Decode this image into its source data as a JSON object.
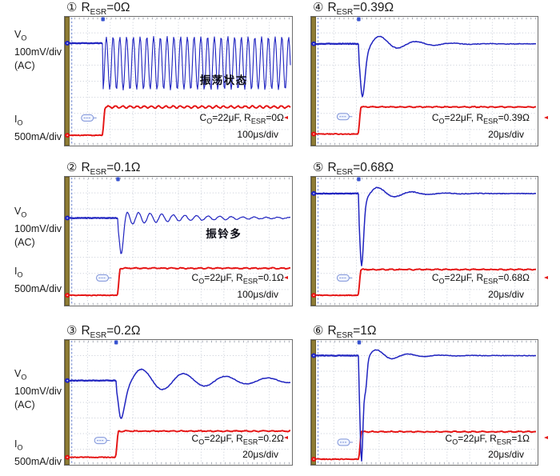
{
  "figure": {
    "axis_labels": {
      "vo": {
        "letter": "V",
        "sub": "O",
        "scale": "100mV/div",
        "coupling": "(AC)"
      },
      "io": {
        "letter": "I",
        "sub": "O",
        "scale": "500mA/div"
      }
    },
    "colors": {
      "vo_trace": "#2024c0",
      "io_trace": "#e51212",
      "grid_dot": "#c6cbd6",
      "frame": "#6e6e6e",
      "left_bar": "#8e7c35",
      "axis_dash": "#96a8e2",
      "tag": "#7e93d9",
      "text": "#111111"
    }
  },
  "chart_data": [
    {
      "type": "line",
      "id": "panel-1",
      "index_glyph": "①",
      "title": {
        "prefix": "R",
        "sub": "ESR",
        "value": "=0Ω"
      },
      "caption": {
        "c": "C",
        "c_sub": "O",
        "mid": "=22μF, R",
        "r_sub": "ESR",
        "value": "=0Ω"
      },
      "timebase": "100μs/div",
      "annotation": "振荡状态",
      "vo_scale": "100mV/div (AC)",
      "io_scale": "500mA/div",
      "grid_divs": {
        "x": 10,
        "y": 8
      },
      "behavior": "sustained output oscillation after load step",
      "wave": {
        "trig": 0.168,
        "vo": {
          "mode": "sustained",
          "base": 0.205,
          "center": 0.36,
          "amp": 0.205,
          "cycles": 28
        },
        "io": {
          "base": 0.92,
          "high": 0.7,
          "ripple": 1.3
        }
      }
    },
    {
      "type": "line",
      "id": "panel-4",
      "index_glyph": "④",
      "title": {
        "prefix": "R",
        "sub": "ESR",
        "value": "=0.39Ω"
      },
      "caption": {
        "c": "C",
        "c_sub": "O",
        "mid": "=22μF, R",
        "r_sub": "ESR",
        "value": "=0.39Ω"
      },
      "timebase": "20μs/div",
      "behavior": "undershoot spike with damped ringing, settles",
      "vo_scale": "100mV/div (AC)",
      "io_scale": "500mA/div",
      "grid_divs": {
        "x": 10,
        "y": 8
      },
      "wave": {
        "trig": 0.21,
        "vo": {
          "mode": "damped",
          "base": 0.21,
          "dip": 0.62,
          "spike_w": 4.5,
          "ring_amp": 0.1,
          "period": 0.16,
          "tau": 0.14
        },
        "io": {
          "base": 0.91,
          "high": 0.7,
          "ripple": 0.45
        }
      }
    },
    {
      "type": "line",
      "id": "panel-2",
      "index_glyph": "②",
      "title": {
        "prefix": "R",
        "sub": "ESR",
        "value": "=0.1Ω"
      },
      "caption": {
        "c": "C",
        "c_sub": "O",
        "mid": "=22μF, R",
        "r_sub": "ESR",
        "value": "=0.1Ω"
      },
      "timebase": "100μs/div",
      "annotation": "振铃多",
      "behavior": "deep dip followed by long decaying ringing",
      "vo_scale": "100mV/div (AC)",
      "io_scale": "500mA/div",
      "grid_divs": {
        "x": 10,
        "y": 8
      },
      "wave": {
        "trig": 0.234,
        "vo": {
          "mode": "damped",
          "base": 0.32,
          "dip": 0.6,
          "spike_w": 4,
          "ring_amp": 0.055,
          "period": 0.051,
          "tau": 0.3
        },
        "io": {
          "base": 0.92,
          "high": 0.71,
          "ripple": 0.45
        }
      }
    },
    {
      "type": "line",
      "id": "panel-5",
      "index_glyph": "⑤",
      "title": {
        "prefix": "R",
        "sub": "ESR",
        "value": "=0.68Ω"
      },
      "caption": {
        "c": "C",
        "c_sub": "O",
        "mid": "=22μF, R",
        "r_sub": "ESR",
        "value": "=0.68Ω"
      },
      "timebase": "20μs/div",
      "behavior": "narrow deep undershoot, small ring, fast settle",
      "vo_scale": "100mV/div (AC)",
      "io_scale": "500mA/div",
      "grid_divs": {
        "x": 10,
        "y": 8
      },
      "wave": {
        "trig": 0.21,
        "vo": {
          "mode": "damped",
          "base": 0.13,
          "dip": 0.69,
          "spike_w": 3.5,
          "ring_amp": 0.085,
          "period": 0.15,
          "tau": 0.12
        },
        "io": {
          "base": 0.92,
          "high": 0.72,
          "ripple": 0.45
        }
      }
    },
    {
      "type": "line",
      "id": "panel-3",
      "index_glyph": "③",
      "title": {
        "prefix": "R",
        "sub": "ESR",
        "value": "=0.2Ω"
      },
      "caption": {
        "c": "C",
        "c_sub": "O",
        "mid": "=22μF, R",
        "r_sub": "ESR",
        "value": "=0.2Ω"
      },
      "timebase": "20μs/div",
      "behavior": "dip with slow decaying ringing over several cycles",
      "vo_scale": "100mV/div (AC)",
      "io_scale": "500mA/div",
      "grid_divs": {
        "x": 10,
        "y": 8
      },
      "wave": {
        "trig": 0.226,
        "vo": {
          "mode": "damped",
          "base": 0.325,
          "dip": 0.63,
          "spike_w": 6,
          "ring_amp": 0.115,
          "period": 0.185,
          "tau": 0.38
        },
        "io": {
          "base": 0.94,
          "high": 0.73,
          "ripple": 0.45
        }
      }
    },
    {
      "type": "line",
      "id": "panel-6",
      "index_glyph": "⑥",
      "title": {
        "prefix": "R",
        "sub": "ESR",
        "value": "=1Ω"
      },
      "caption": {
        "c": "C",
        "c_sub": "O",
        "mid": "=22μF, R",
        "r_sub": "ESR",
        "value": "=1Ω"
      },
      "timebase": "20μs/div",
      "behavior": "very deep narrow spike crossing current trace, quick settle",
      "vo_scale": "100mV/div (AC)",
      "io_scale": "500mA/div",
      "grid_divs": {
        "x": 10,
        "y": 8
      },
      "wave": {
        "trig": 0.212,
        "vo": {
          "mode": "damped",
          "base": 0.125,
          "dip": 0.97,
          "spike_w": 2.8,
          "dip2": 0.34,
          "spike2_dx": 8,
          "spike2_w": 2.5,
          "ring_amp": 0.085,
          "period": 0.14,
          "tau": 0.11
        },
        "io": {
          "base": 0.955,
          "high": 0.735,
          "ripple": 0.45
        }
      }
    }
  ]
}
